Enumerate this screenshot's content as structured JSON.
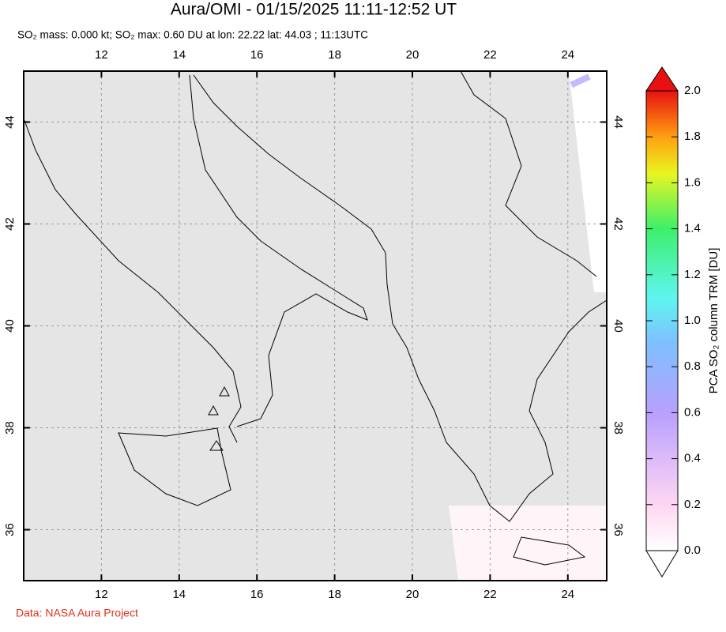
{
  "header": {
    "title": "Aura/OMI - 01/15/2025 11:11-12:52 UT",
    "subtitle": "SO₂ mass: 0.000 kt; SO₂ max: 0.60 DU at lon: 22.22 lat: 44.03 ; 11:13UTC"
  },
  "map": {
    "xlim": [
      10,
      25
    ],
    "ylim": [
      35,
      45
    ],
    "xticks": [
      12,
      14,
      16,
      18,
      20,
      22,
      24
    ],
    "yticks": [
      36,
      38,
      40,
      42,
      44
    ],
    "grid": true
  },
  "colorbar": {
    "label": "PCA SO₂ column TRM [DU]",
    "lim": [
      0,
      2
    ],
    "ticks": [
      {
        "value": 0,
        "label": "0.0"
      },
      {
        "value": 0.2,
        "label": "0.2"
      },
      {
        "value": 0.4,
        "label": "0.4"
      },
      {
        "value": 0.6,
        "label": "0.6"
      },
      {
        "value": 0.8,
        "label": "0.8"
      },
      {
        "value": 1,
        "label": "1.0"
      },
      {
        "value": 1.2,
        "label": "1.2"
      },
      {
        "value": 1.4,
        "label": "1.4"
      },
      {
        "value": 1.6,
        "label": "1.6"
      },
      {
        "value": 1.8,
        "label": "1.8"
      },
      {
        "value": 2,
        "label": "2.0"
      }
    ]
  },
  "footer": {
    "credit": "Data: NASA Aura Project"
  }
}
